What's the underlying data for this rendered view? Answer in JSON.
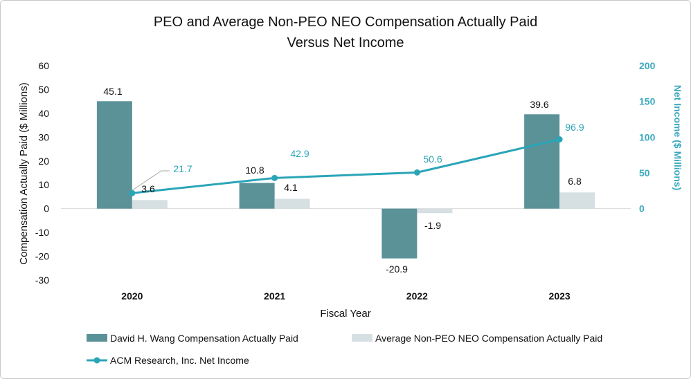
{
  "chart_data": {
    "type": "bar",
    "title_lines": [
      "PEO and Average Non-PEO NEO Compensation Actually Paid",
      "Versus Net Income"
    ],
    "xlabel": "Fiscal Year",
    "ylabel": "Compensation Actually Paid ($ Millions)",
    "y2label": "Net Income ($ Millions)",
    "categories": [
      "2020",
      "2021",
      "2022",
      "2023"
    ],
    "ylim": [
      -30,
      60
    ],
    "yticks": [
      -30,
      -20,
      -10,
      0,
      10,
      20,
      30,
      40,
      50,
      60
    ],
    "y2lim": [
      0,
      200
    ],
    "y2ticks": [
      0,
      50,
      100,
      150,
      200
    ],
    "series": [
      {
        "name": "David H. Wang Compensation Actually Paid",
        "kind": "bar",
        "axis": "left",
        "color": "#5a9298",
        "values": [
          45.1,
          10.8,
          -20.9,
          39.6
        ],
        "labels": [
          "45.1",
          "10.8",
          "-20.9",
          "39.6"
        ]
      },
      {
        "name": "Average Non-PEO NEO Compensation Actually Paid",
        "kind": "bar",
        "axis": "left",
        "color": "#d6e0e3",
        "values": [
          3.6,
          4.1,
          -1.9,
          6.8
        ],
        "labels": [
          "3.6",
          "4.1",
          "-1.9",
          "6.8"
        ]
      },
      {
        "name": "ACM Research, Inc. Net Income",
        "kind": "line",
        "axis": "right",
        "color": "#2aa5b8",
        "values": [
          21.7,
          42.9,
          50.6,
          96.9
        ],
        "labels": [
          "21.7",
          "42.9",
          "50.6",
          "96.9"
        ]
      }
    ],
    "colors": {
      "axis_text": "#111111",
      "right_axis": "#3aa9be",
      "zero_line": "#d9d9d9"
    }
  }
}
